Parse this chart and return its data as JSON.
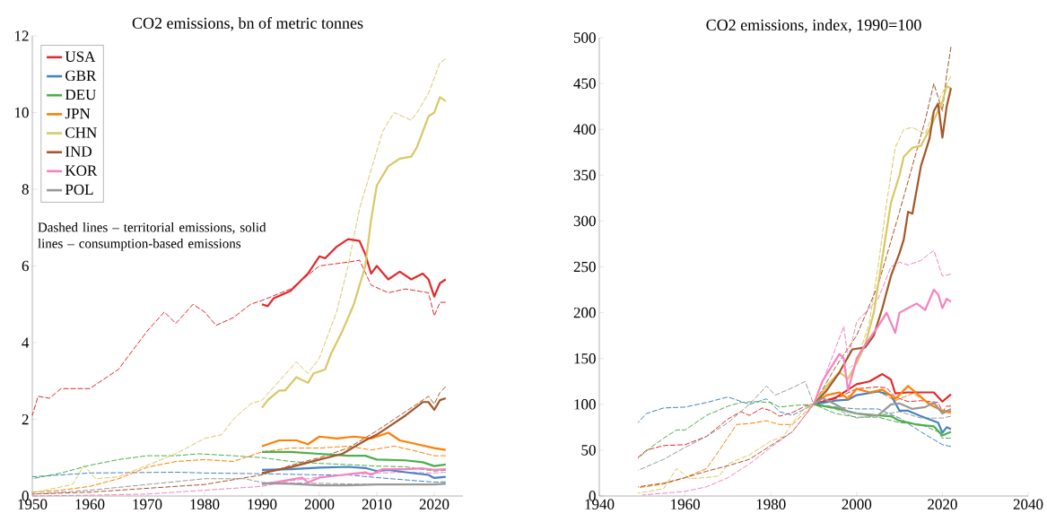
{
  "chart_data": [
    {
      "type": "line",
      "title": "CO2 emissions, bn of metric tonnes",
      "xlim": [
        1950,
        2025
      ],
      "ylim": [
        0,
        12
      ],
      "xticks": [
        1950,
        1960,
        1970,
        1980,
        1990,
        2000,
        2010,
        2020
      ],
      "yticks": [
        0,
        2,
        4,
        6,
        8,
        10,
        12
      ],
      "legend": "top left",
      "annotations": [
        "Dashed lines – territorial emissions, solid lines – consumption-based emissions"
      ],
      "series": [
        {
          "color": "#e3292b",
          "line_style": "dashed",
          "x": [
            1950,
            1951,
            1953,
            1955,
            1960,
            1965,
            1970,
            1973,
            1975,
            1978,
            1980,
            1982,
            1985,
            1988,
            1990,
            1995,
            2000,
            2005,
            2007,
            2009,
            2012,
            2015,
            2019,
            2020,
            2021,
            2022
          ],
          "values": [
            2.1,
            2.6,
            2.55,
            2.8,
            2.8,
            3.3,
            4.3,
            4.8,
            4.5,
            5.0,
            4.8,
            4.45,
            4.65,
            5.0,
            5.1,
            5.4,
            6.0,
            6.1,
            6.15,
            5.5,
            5.3,
            5.4,
            5.3,
            4.7,
            5.05,
            5.05
          ]
        },
        {
          "color": "#4683c4",
          "line_style": "dashed",
          "x": [
            1950,
            1960,
            1975,
            1980,
            1990,
            2000,
            2005,
            2010,
            2015,
            2020,
            2022
          ],
          "values": [
            0.5,
            0.6,
            0.62,
            0.6,
            0.58,
            0.55,
            0.55,
            0.48,
            0.42,
            0.36,
            0.37
          ]
        },
        {
          "color": "#4daf4a",
          "line_style": "dashed",
          "x": [
            1950,
            1955,
            1960,
            1965,
            1970,
            1975,
            1979,
            1985,
            1990,
            1995,
            2000,
            2005,
            2010,
            2015,
            2020,
            2022
          ],
          "values": [
            0.45,
            0.6,
            0.8,
            0.95,
            1.05,
            1.05,
            1.1,
            1.05,
            1.0,
            0.9,
            0.85,
            0.82,
            0.78,
            0.76,
            0.65,
            0.67
          ]
        },
        {
          "color": "#ff7f00",
          "line_style": "dashed",
          "x": [
            1950,
            1955,
            1960,
            1965,
            1970,
            1975,
            1980,
            1985,
            1990,
            1995,
            2000,
            2005,
            2009,
            2013,
            2016,
            2020,
            2022
          ],
          "values": [
            0.1,
            0.15,
            0.25,
            0.45,
            0.75,
            0.9,
            0.95,
            0.9,
            1.15,
            1.25,
            1.25,
            1.3,
            1.2,
            1.3,
            1.2,
            1.05,
            1.05
          ]
        },
        {
          "color": "#d8c866",
          "line_style": "dashed",
          "x": [
            1950,
            1957,
            1959,
            1961,
            1965,
            1970,
            1975,
            1980,
            1983,
            1985,
            1988,
            1990,
            1993,
            1996,
            1998,
            2000,
            2003,
            2005,
            2007,
            2008,
            2011,
            2013,
            2016,
            2017,
            2019,
            2021,
            2022
          ],
          "values": [
            0.08,
            0.3,
            0.8,
            0.45,
            0.5,
            0.8,
            1.1,
            1.5,
            1.6,
            2.0,
            2.4,
            2.5,
            3.0,
            3.5,
            3.2,
            3.6,
            4.8,
            6.0,
            7.5,
            8.0,
            9.5,
            10.0,
            9.8,
            10.0,
            10.5,
            11.3,
            11.4
          ]
        },
        {
          "color": "#a65628",
          "line_style": "dashed",
          "x": [
            1950,
            1960,
            1970,
            1980,
            1990,
            1995,
            2000,
            2005,
            2010,
            2014,
            2017,
            2019,
            2020,
            2021,
            2022
          ],
          "values": [
            0.05,
            0.1,
            0.2,
            0.3,
            0.55,
            0.8,
            1.0,
            1.25,
            1.7,
            2.1,
            2.4,
            2.6,
            2.4,
            2.7,
            2.85
          ]
        },
        {
          "color": "#f781bf",
          "line_style": "dashed",
          "x": [
            1950,
            1960,
            1970,
            1980,
            1990,
            1995,
            1998,
            2000,
            2005,
            2010,
            2015,
            2020,
            2022
          ],
          "values": [
            0.0,
            0.02,
            0.05,
            0.15,
            0.25,
            0.4,
            0.45,
            0.5,
            0.55,
            0.6,
            0.62,
            0.6,
            0.62
          ]
        },
        {
          "color": "#999999",
          "line_style": "dashed",
          "x": [
            1950,
            1960,
            1970,
            1980,
            1987,
            1990,
            2000,
            2010,
            2020,
            2022
          ],
          "values": [
            0.05,
            0.15,
            0.3,
            0.45,
            0.45,
            0.35,
            0.33,
            0.3,
            0.31,
            0.33
          ]
        },
        {
          "name": "USA",
          "color": "#e3292b",
          "line_style": "solid",
          "x": [
            1990,
            1991,
            1992,
            1995,
            1998,
            2000,
            2001,
            2003,
            2005,
            2007,
            2008,
            2009,
            2010,
            2012,
            2014,
            2016,
            2018,
            2019,
            2020,
            2021,
            2022
          ],
          "values": [
            5.0,
            4.95,
            5.15,
            5.35,
            5.8,
            6.25,
            6.2,
            6.5,
            6.7,
            6.65,
            6.3,
            5.8,
            6.0,
            5.65,
            5.85,
            5.65,
            5.8,
            5.65,
            5.2,
            5.55,
            5.65
          ]
        },
        {
          "name": "GBR",
          "color": "#4683c4",
          "line_style": "solid",
          "x": [
            1990,
            1995,
            2000,
            2005,
            2008,
            2010,
            2012,
            2015,
            2019,
            2020,
            2022
          ],
          "values": [
            0.68,
            0.7,
            0.74,
            0.76,
            0.73,
            0.65,
            0.68,
            0.62,
            0.55,
            0.47,
            0.5
          ]
        },
        {
          "name": "DEU",
          "color": "#4daf4a",
          "line_style": "solid",
          "x": [
            1990,
            1995,
            2000,
            2005,
            2008,
            2010,
            2015,
            2018,
            2020,
            2022
          ],
          "values": [
            1.15,
            1.15,
            1.1,
            1.05,
            1.05,
            0.95,
            0.93,
            0.88,
            0.78,
            0.82
          ]
        },
        {
          "name": "JPN",
          "color": "#ff7f00",
          "line_style": "solid",
          "x": [
            1990,
            1993,
            1996,
            1998,
            2000,
            2003,
            2006,
            2009,
            2012,
            2014,
            2017,
            2020,
            2022
          ],
          "values": [
            1.3,
            1.45,
            1.45,
            1.35,
            1.55,
            1.5,
            1.55,
            1.5,
            1.65,
            1.45,
            1.35,
            1.25,
            1.2
          ]
        },
        {
          "name": "CHN",
          "color": "#d8c866",
          "line_style": "solid",
          "x": [
            1990,
            1991,
            1993,
            1994,
            1996,
            1998,
            1999,
            2001,
            2002,
            2004,
            2006,
            2008,
            2009,
            2010,
            2012,
            2014,
            2016,
            2017,
            2019,
            2020,
            2021,
            2022
          ],
          "values": [
            2.3,
            2.5,
            2.75,
            2.75,
            3.1,
            2.95,
            3.2,
            3.3,
            3.7,
            4.3,
            5.0,
            6.0,
            7.2,
            8.1,
            8.6,
            8.8,
            8.85,
            9.1,
            9.9,
            10.0,
            10.4,
            10.3
          ]
        },
        {
          "name": "IND",
          "color": "#a65628",
          "line_style": "solid",
          "x": [
            1990,
            1995,
            2000,
            2004,
            2008,
            2010,
            2012,
            2015,
            2018,
            2019,
            2020,
            2021,
            2022
          ],
          "values": [
            0.6,
            0.75,
            0.95,
            1.1,
            1.45,
            1.6,
            1.8,
            2.1,
            2.45,
            2.45,
            2.25,
            2.5,
            2.55
          ]
        },
        {
          "name": "KOR",
          "color": "#f781bf",
          "line_style": "solid",
          "x": [
            1990,
            1994,
            1997,
            1998,
            2000,
            2004,
            2008,
            2009,
            2011,
            2015,
            2018,
            2020,
            2022
          ],
          "values": [
            0.3,
            0.4,
            0.48,
            0.35,
            0.48,
            0.55,
            0.62,
            0.55,
            0.7,
            0.7,
            0.72,
            0.68,
            0.7
          ]
        },
        {
          "name": "POL",
          "color": "#999999",
          "line_style": "solid",
          "x": [
            1990,
            1995,
            2000,
            2005,
            2010,
            2015,
            2020,
            2022
          ],
          "values": [
            0.33,
            0.32,
            0.28,
            0.28,
            0.3,
            0.3,
            0.3,
            0.32
          ]
        }
      ]
    },
    {
      "type": "line",
      "title": "CO2 emissions, index, 1990=100",
      "xlim": [
        1940,
        2040
      ],
      "ylim": [
        0,
        500
      ],
      "xticks": [
        1940,
        1960,
        1980,
        2000,
        2020,
        2040
      ],
      "yticks": [
        0,
        50,
        100,
        150,
        200,
        250,
        300,
        350,
        400,
        450,
        500
      ],
      "series": [
        {
          "color": "#e3292b",
          "line_style": "dashed",
          "x": [
            1949,
            1951,
            1955,
            1960,
            1965,
            1970,
            1973,
            1975,
            1978,
            1980,
            1982,
            1985,
            1988,
            1990,
            1995,
            2000,
            2005,
            2007,
            2009,
            2012,
            2015,
            2019,
            2020,
            2021,
            2022
          ],
          "values": [
            42,
            50,
            55,
            56,
            65,
            84,
            92,
            88,
            96,
            93,
            87,
            91,
            98,
            100,
            106,
            117,
            119,
            118,
            108,
            103,
            104,
            102,
            92,
            98,
            98
          ]
        },
        {
          "color": "#4683c4",
          "line_style": "dashed",
          "x": [
            1949,
            1951,
            1955,
            1960,
            1965,
            1970,
            1975,
            1979,
            1982,
            1985,
            1988,
            1990,
            1995,
            2000,
            2005,
            2010,
            2015,
            2020,
            2022
          ],
          "values": [
            80,
            90,
            96,
            97,
            102,
            108,
            100,
            106,
            92,
            88,
            95,
            100,
            97,
            95,
            95,
            85,
            70,
            56,
            54
          ]
        },
        {
          "color": "#4daf4a",
          "line_style": "dashed",
          "x": [
            1949,
            1952,
            1955,
            1958,
            1960,
            1965,
            1970,
            1973,
            1976,
            1980,
            1982,
            1986,
            1990,
            1995,
            2000,
            2005,
            2010,
            2015,
            2019,
            2020,
            2022
          ],
          "values": [
            41,
            53,
            63,
            72,
            72,
            88,
            98,
            102,
            103,
            102,
            97,
            99,
            100,
            90,
            86,
            86,
            80,
            78,
            70,
            63,
            63
          ]
        },
        {
          "color": "#ff7f00",
          "line_style": "dashed",
          "x": [
            1949,
            1955,
            1960,
            1965,
            1968,
            1972,
            1975,
            1979,
            1982,
            1985,
            1990,
            1995,
            2000,
            2005,
            2009,
            2013,
            2016,
            2020,
            2022
          ],
          "values": [
            9,
            13,
            20,
            30,
            50,
            78,
            79,
            82,
            78,
            78,
            100,
            108,
            110,
            114,
            104,
            112,
            104,
            92,
            90
          ]
        },
        {
          "color": "#d8c866",
          "line_style": "dashed",
          "x": [
            1949,
            1955,
            1958,
            1961,
            1965,
            1968,
            1970,
            1975,
            1980,
            1983,
            1985,
            1988,
            1990,
            1995,
            2000,
            2003,
            2005,
            2007,
            2009,
            2011,
            2013,
            2016,
            2018,
            2020,
            2022
          ],
          "values": [
            3,
            8,
            30,
            19,
            20,
            22,
            35,
            45,
            60,
            65,
            80,
            96,
            100,
            130,
            145,
            190,
            250,
            320,
            380,
            400,
            402,
            395,
            420,
            440,
            458
          ]
        },
        {
          "color": "#a65628",
          "line_style": "dashed",
          "x": [
            1949,
            1955,
            1960,
            1965,
            1970,
            1975,
            1980,
            1985,
            1990,
            1995,
            2000,
            2005,
            2010,
            2013,
            2016,
            2018,
            2020,
            2021,
            2022
          ],
          "values": [
            10,
            14,
            20,
            27,
            33,
            40,
            55,
            70,
            100,
            140,
            175,
            230,
            310,
            360,
            410,
            450,
            420,
            460,
            490
          ]
        },
        {
          "color": "#f781bf",
          "line_style": "dashed",
          "x": [
            1950,
            1960,
            1965,
            1970,
            1975,
            1980,
            1985,
            1990,
            1995,
            1997,
            1998,
            2000,
            2005,
            2008,
            2010,
            2012,
            2015,
            2018,
            2020,
            2022
          ],
          "values": [
            1,
            5,
            10,
            20,
            35,
            53,
            70,
            100,
            160,
            185,
            150,
            190,
            215,
            250,
            255,
            252,
            257,
            268,
            240,
            242
          ]
        },
        {
          "color": "#999999",
          "line_style": "dashed",
          "x": [
            1949,
            1955,
            1960,
            1965,
            1970,
            1975,
            1979,
            1981,
            1985,
            1988,
            1990,
            1995,
            2000,
            2005,
            2010,
            2015,
            2020,
            2022
          ],
          "values": [
            28,
            40,
            53,
            65,
            80,
            100,
            120,
            110,
            118,
            125,
            100,
            95,
            85,
            88,
            92,
            85,
            85,
            87
          ]
        },
        {
          "color": "#e3292b",
          "line_style": "solid",
          "x": [
            1990,
            1995,
            2000,
            2003,
            2006,
            2008,
            2009,
            2012,
            2015,
            2018,
            2020,
            2022
          ],
          "values": [
            100,
            107,
            122,
            125,
            133,
            127,
            112,
            113,
            113,
            113,
            103,
            111
          ]
        },
        {
          "color": "#4683c4",
          "line_style": "solid",
          "x": [
            1990,
            1995,
            1998,
            2000,
            2005,
            2008,
            2010,
            2012,
            2015,
            2019,
            2020,
            2021,
            2022
          ],
          "values": [
            100,
            104,
            105,
            110,
            114,
            110,
            93,
            93,
            87,
            80,
            69,
            75,
            73
          ]
        },
        {
          "color": "#4daf4a",
          "line_style": "solid",
          "x": [
            1990,
            1995,
            2000,
            2005,
            2008,
            2010,
            2014,
            2018,
            2020,
            2022
          ],
          "values": [
            100,
            96,
            90,
            88,
            87,
            82,
            78,
            76,
            66,
            70
          ]
        },
        {
          "color": "#ff7f00",
          "line_style": "solid",
          "x": [
            1990,
            1993,
            1996,
            1998,
            2000,
            2003,
            2006,
            2009,
            2012,
            2014,
            2017,
            2020,
            2022
          ],
          "values": [
            100,
            110,
            113,
            106,
            117,
            113,
            116,
            106,
            120,
            112,
            100,
            93,
            92
          ]
        },
        {
          "color": "#d8c866",
          "line_style": "solid",
          "x": [
            1990,
            1993,
            1996,
            1998,
            2000,
            2002,
            2004,
            2006,
            2008,
            2010,
            2011,
            2013,
            2015,
            2017,
            2019,
            2020,
            2021,
            2022
          ],
          "values": [
            100,
            120,
            135,
            128,
            145,
            165,
            200,
            260,
            320,
            350,
            370,
            380,
            382,
            400,
            420,
            430,
            447,
            445
          ]
        },
        {
          "color": "#a65628",
          "line_style": "solid",
          "x": [
            1990,
            1993,
            1996,
            1999,
            2002,
            2004,
            2006,
            2008,
            2010,
            2011,
            2012,
            2013,
            2015,
            2017,
            2018,
            2019,
            2020,
            2021,
            2022
          ],
          "values": [
            100,
            115,
            135,
            160,
            162,
            175,
            205,
            240,
            265,
            280,
            310,
            308,
            360,
            390,
            420,
            428,
            391,
            425,
            445
          ]
        },
        {
          "color": "#f781bf",
          "line_style": "solid",
          "x": [
            1990,
            1992,
            1994,
            1996,
            1997,
            1998,
            2000,
            2002,
            2005,
            2007,
            2009,
            2010,
            2012,
            2014,
            2016,
            2018,
            2019,
            2020,
            2021,
            2022
          ],
          "values": [
            100,
            125,
            140,
            155,
            150,
            115,
            150,
            165,
            185,
            200,
            178,
            200,
            205,
            210,
            203,
            225,
            220,
            205,
            215,
            212
          ]
        },
        {
          "color": "#999999",
          "line_style": "solid",
          "x": [
            1990,
            1992,
            1995,
            1998,
            2000,
            2003,
            2005,
            2008,
            2010,
            2013,
            2016,
            2018,
            2020,
            2022
          ],
          "values": [
            100,
            107,
            100,
            92,
            90,
            88,
            88,
            100,
            101,
            95,
            97,
            102,
            90,
            95
          ]
        }
      ]
    }
  ]
}
